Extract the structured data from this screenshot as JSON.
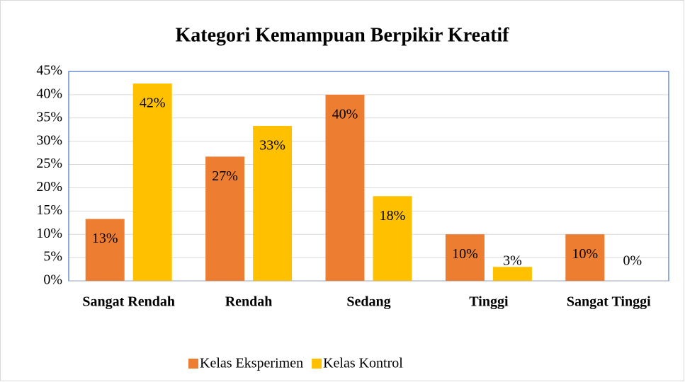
{
  "chart_data": {
    "type": "bar",
    "title": "Kategori Kemampuan Berpikir Kreatif",
    "categories": [
      "Sangat Rendah",
      "Rendah",
      "Sedang",
      "Tinggi",
      "Sangat Tinggi"
    ],
    "series": [
      {
        "name": "Kelas Eksperimen",
        "color": "#ed7d31",
        "values": [
          13.3,
          26.7,
          40,
          10,
          10
        ],
        "value_labels": [
          "13%",
          "27%",
          "40%",
          "10%",
          "10%"
        ]
      },
      {
        "name": "Kelas Kontrol",
        "color": "#ffc000",
        "values": [
          42.4,
          33.3,
          18.2,
          3,
          0
        ],
        "value_labels": [
          "42%",
          "33%",
          "18%",
          "3%",
          "0%"
        ]
      }
    ],
    "ylim": [
      0,
      45
    ],
    "yticks": [
      {
        "value": 0,
        "label": "0%"
      },
      {
        "value": 5,
        "label": "5%"
      },
      {
        "value": 10,
        "label": "10%"
      },
      {
        "value": 15,
        "label": "15%"
      },
      {
        "value": 20,
        "label": "20%"
      },
      {
        "value": 25,
        "label": "25%"
      },
      {
        "value": 30,
        "label": "30%"
      },
      {
        "value": 35,
        "label": "35%"
      },
      {
        "value": 40,
        "label": "40%"
      },
      {
        "value": 45,
        "label": "45%"
      }
    ],
    "grid": true,
    "legend": "bottom"
  }
}
